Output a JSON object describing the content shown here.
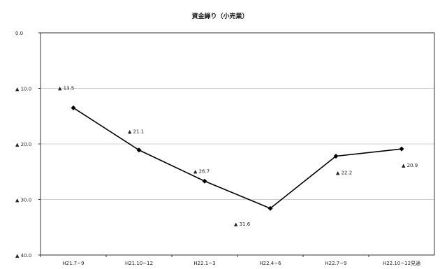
{
  "chart_data": {
    "type": "line",
    "title": "資金繰り（小売業）",
    "xlabel": "",
    "ylabel": "",
    "categories": [
      "H21.7~9",
      "H21.10~12",
      "H22.1~3",
      "H22.4~6",
      "H22.7~9",
      "H22.10~12見通"
    ],
    "series": [
      {
        "values": [
          -13.5,
          -21.1,
          -26.7,
          -31.6,
          -22.2,
          -20.9
        ],
        "color": "#000000"
      }
    ],
    "ylim": [
      -40.0,
      0.0
    ],
    "yticks": [
      0.0,
      -10.0,
      -20.0,
      -30.0,
      -40.0
    ],
    "ytick_labels": [
      "0.0",
      "▲ 10.0",
      "▲ 20.0",
      "▲ 30.0",
      "▲ 40.0"
    ],
    "data_labels": [
      "▲ 13.5",
      "▲ 21.1",
      "▲ 26.7",
      "▲ 31.6",
      "▲ 22.2",
      "▲ 20.9"
    ],
    "grid": true,
    "legend": "none"
  }
}
